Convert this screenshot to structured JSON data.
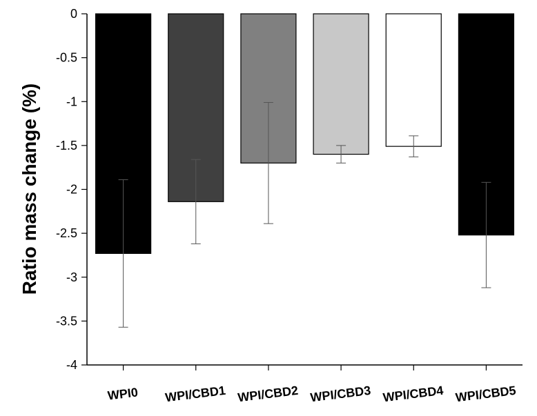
{
  "chart_data": {
    "type": "bar",
    "title": "",
    "xlabel": "",
    "ylabel": "Ratio mass change (%)",
    "ylim": [
      -4,
      0
    ],
    "yticks": [
      0,
      -0.5,
      -1,
      -1.5,
      -2,
      -2.5,
      -3,
      -3.5,
      -4
    ],
    "ytick_labels": [
      "0",
      "-0.5",
      "-1",
      "-1.5",
      "-2",
      "-2.5",
      "-3",
      "-3.5",
      "-4"
    ],
    "categories": [
      "WPI0",
      "WPI/CBD1",
      "WPI/CBD2",
      "WPI/CBD3",
      "WPI/CBD4",
      "WPI/CBD5"
    ],
    "values": [
      -2.73,
      -2.14,
      -1.7,
      -1.6,
      -1.51,
      -2.52
    ],
    "errors": [
      0.84,
      0.48,
      0.69,
      0.1,
      0.12,
      0.6
    ],
    "bar_colors": [
      "#000000",
      "#404040",
      "#808080",
      "#c8c8c8",
      "#ffffff",
      "#000000"
    ],
    "grid": false,
    "legend": false
  }
}
